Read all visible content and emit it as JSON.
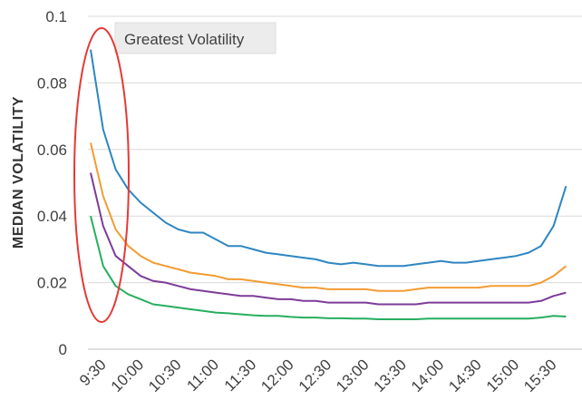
{
  "chart_data": {
    "type": "line",
    "title": "",
    "xlabel": "",
    "ylabel": "MEDIAN VOLATILITY",
    "ylim": [
      0,
      0.1
    ],
    "yticks": [
      "0",
      "0.02",
      "0.04",
      "0.06",
      "0.08",
      "0.1"
    ],
    "xticks": [
      "9:30",
      "10:00",
      "10:30",
      "11:00",
      "11:30",
      "12:00",
      "12:30",
      "13:00",
      "13:30",
      "14:00",
      "14:30",
      "15:00",
      "15:30"
    ],
    "grid": "horizontal",
    "annotation": "Greatest Volatility",
    "x": [
      "9:30",
      "9:40",
      "9:50",
      "10:00",
      "10:10",
      "10:20",
      "10:30",
      "10:40",
      "10:50",
      "11:00",
      "11:10",
      "11:20",
      "11:30",
      "11:40",
      "11:50",
      "12:00",
      "12:10",
      "12:20",
      "12:30",
      "12:40",
      "12:50",
      "13:00",
      "13:10",
      "13:20",
      "13:30",
      "13:40",
      "13:50",
      "14:00",
      "14:10",
      "14:20",
      "14:30",
      "14:40",
      "14:50",
      "15:00",
      "15:10",
      "15:20",
      "15:30",
      "15:40",
      "15:50"
    ],
    "series": [
      {
        "color": "#2e86c1",
        "values": [
          0.09,
          0.066,
          0.054,
          0.048,
          0.044,
          0.041,
          0.038,
          0.036,
          0.035,
          0.035,
          0.033,
          0.031,
          0.031,
          0.03,
          0.029,
          0.0285,
          0.028,
          0.0275,
          0.027,
          0.026,
          0.0255,
          0.026,
          0.0255,
          0.025,
          0.025,
          0.025,
          0.0255,
          0.026,
          0.0265,
          0.026,
          0.026,
          0.0265,
          0.027,
          0.0275,
          0.028,
          0.029,
          0.031,
          0.037,
          0.049
        ]
      },
      {
        "color": "#f39c34",
        "values": [
          0.062,
          0.046,
          0.036,
          0.031,
          0.028,
          0.026,
          0.025,
          0.024,
          0.023,
          0.0225,
          0.022,
          0.021,
          0.021,
          0.0205,
          0.02,
          0.0195,
          0.019,
          0.0185,
          0.0185,
          0.018,
          0.018,
          0.018,
          0.018,
          0.0175,
          0.0175,
          0.0175,
          0.018,
          0.0185,
          0.0185,
          0.0185,
          0.0185,
          0.0185,
          0.019,
          0.019,
          0.019,
          0.019,
          0.02,
          0.022,
          0.025
        ]
      },
      {
        "color": "#7d3c98",
        "values": [
          0.053,
          0.037,
          0.028,
          0.025,
          0.022,
          0.0205,
          0.02,
          0.019,
          0.018,
          0.0175,
          0.017,
          0.0165,
          0.016,
          0.016,
          0.0155,
          0.015,
          0.015,
          0.0145,
          0.0145,
          0.014,
          0.014,
          0.014,
          0.014,
          0.0135,
          0.0135,
          0.0135,
          0.0135,
          0.014,
          0.014,
          0.014,
          0.014,
          0.014,
          0.014,
          0.014,
          0.014,
          0.014,
          0.0145,
          0.016,
          0.017
        ]
      },
      {
        "color": "#27ae60",
        "values": [
          0.04,
          0.025,
          0.019,
          0.0165,
          0.015,
          0.0135,
          0.013,
          0.0125,
          0.012,
          0.0115,
          0.011,
          0.0108,
          0.0105,
          0.0102,
          0.01,
          0.01,
          0.0097,
          0.0095,
          0.0095,
          0.0093,
          0.0093,
          0.0092,
          0.0092,
          0.009,
          0.009,
          0.009,
          0.009,
          0.0092,
          0.0092,
          0.0092,
          0.0092,
          0.0092,
          0.0092,
          0.0092,
          0.0092,
          0.0092,
          0.0095,
          0.01,
          0.0098
        ]
      }
    ]
  }
}
